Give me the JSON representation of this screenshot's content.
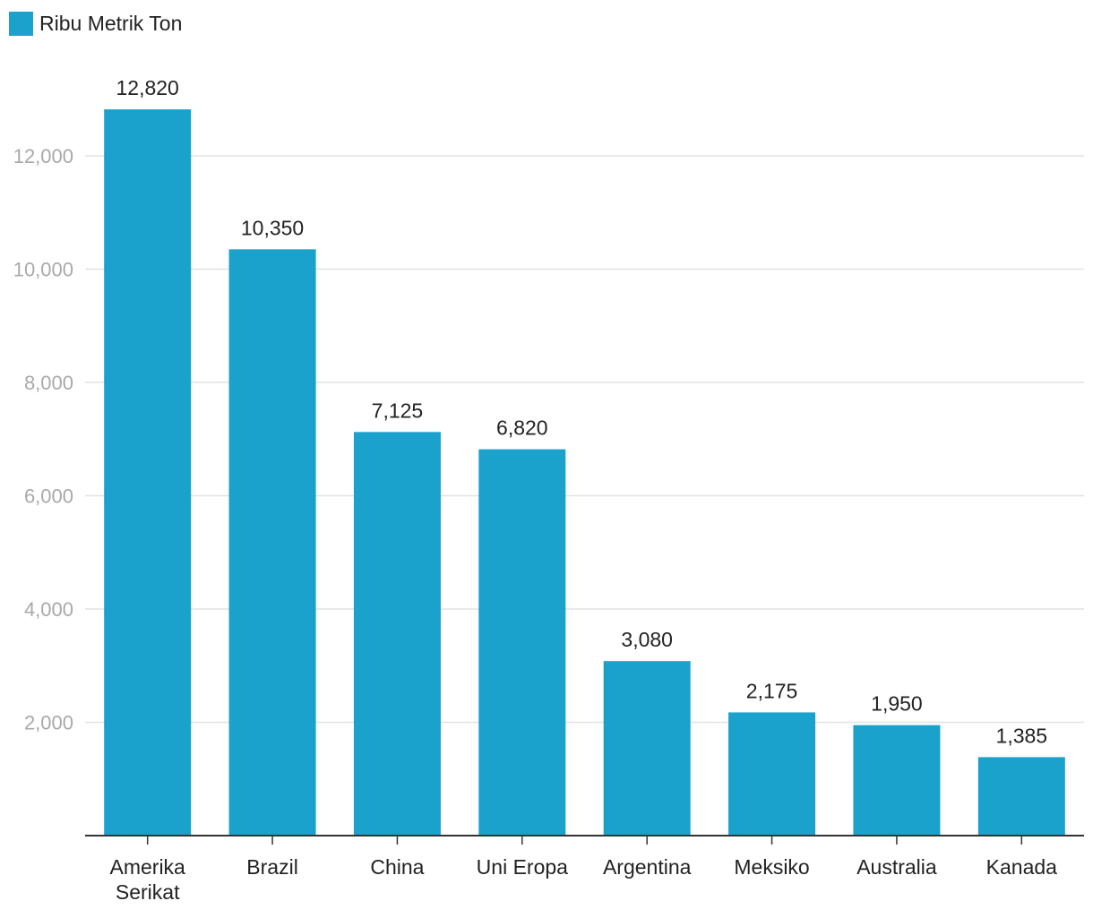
{
  "chart_data": {
    "type": "bar",
    "title": "",
    "xlabel": "",
    "ylabel": "",
    "legend_position": "top-left",
    "grid": true,
    "ylim": [
      0,
      13500
    ],
    "yticks": [
      2000,
      4000,
      6000,
      8000,
      10000,
      12000
    ],
    "ytick_labels": [
      "2,000",
      "4,000",
      "6,000",
      "8,000",
      "10,000",
      "12,000"
    ],
    "categories": [
      [
        "Amerika",
        "Serikat"
      ],
      [
        "Brazil"
      ],
      [
        "China"
      ],
      [
        "Uni Eropa"
      ],
      [
        "Argentina"
      ],
      [
        "Meksiko"
      ],
      [
        "Australia"
      ],
      [
        "Kanada"
      ]
    ],
    "series": [
      {
        "name": "Ribu Metrik Ton",
        "color": "#1aa1cc",
        "values": [
          12820,
          10350,
          7125,
          6820,
          3080,
          2175,
          1950,
          1385
        ],
        "value_labels": [
          "12,820",
          "10,350",
          "7,125",
          "6,820",
          "3,080",
          "2,175",
          "1,950",
          "1,385"
        ]
      }
    ]
  }
}
